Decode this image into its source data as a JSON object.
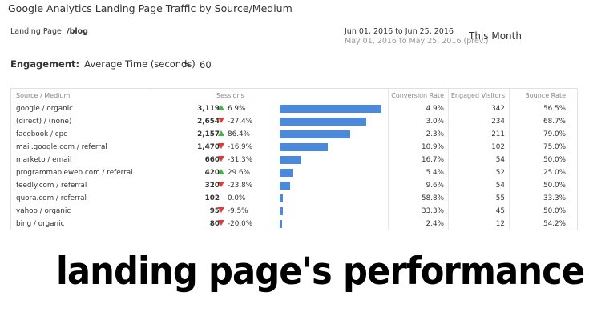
{
  "widget": {
    "title": "Google Analytics Landing Page Traffic by Source/Medium",
    "landing_label": "Landing Page:",
    "landing_value": "/blog",
    "date_current": "Jun 01, 2016  to Jun 25, 2016",
    "date_previous": "May 01, 2016  to May 25, 2016 (prev.)",
    "period": "This Month",
    "filter_label": "Engagement:",
    "filter_metric": "Average Time (seconds)",
    "filter_operator": ">",
    "filter_value": "60"
  },
  "table": {
    "headers": {
      "source": "Source / Medium",
      "sessions": "Sessions",
      "conversion": "Conversion Rate",
      "engaged": "Engaged Visitors",
      "bounce": "Bounce Rate"
    },
    "rows": [
      {
        "source": "google / organic",
        "sessions": "3,119",
        "sessions_value": 3119,
        "change": "6.9%",
        "dir": "up",
        "conversion": "4.9%",
        "engaged": "342",
        "bounce": "56.5%"
      },
      {
        "source": "(direct) / (none)",
        "sessions": "2,654",
        "sessions_value": 2654,
        "change": "-27.4%",
        "dir": "down",
        "conversion": "3.0%",
        "engaged": "234",
        "bounce": "68.7%"
      },
      {
        "source": "facebook / cpc",
        "sessions": "2,157",
        "sessions_value": 2157,
        "change": "86.4%",
        "dir": "up",
        "conversion": "2.3%",
        "engaged": "211",
        "bounce": "79.0%"
      },
      {
        "source": "mail.google.com / referral",
        "sessions": "1,470",
        "sessions_value": 1470,
        "change": "-16.9%",
        "dir": "down",
        "conversion": "10.9%",
        "engaged": "102",
        "bounce": "75.0%"
      },
      {
        "source": "marketo / email",
        "sessions": "660",
        "sessions_value": 660,
        "change": "-31.3%",
        "dir": "down",
        "conversion": "16.7%",
        "engaged": "54",
        "bounce": "50.0%"
      },
      {
        "source": "programmableweb.com / referral",
        "sessions": "420",
        "sessions_value": 420,
        "change": "29.6%",
        "dir": "up",
        "conversion": "5.4%",
        "engaged": "52",
        "bounce": "25.0%"
      },
      {
        "source": "feedly.com / referral",
        "sessions": "320",
        "sessions_value": 320,
        "change": "-23.8%",
        "dir": "down",
        "conversion": "9.6%",
        "engaged": "54",
        "bounce": "50.0%"
      },
      {
        "source": "quora.com / referral",
        "sessions": "102",
        "sessions_value": 102,
        "change": "0.0%",
        "dir": "none",
        "conversion": "58.8%",
        "engaged": "55",
        "bounce": "33.3%"
      },
      {
        "source": "yahoo / organic",
        "sessions": "95",
        "sessions_value": 95,
        "change": "-9.5%",
        "dir": "down",
        "conversion": "33.3%",
        "engaged": "45",
        "bounce": "50.0%"
      },
      {
        "source": "bing / organic",
        "sessions": "80",
        "sessions_value": 80,
        "change": "-20.0%",
        "dir": "down",
        "conversion": "2.4%",
        "engaged": "12",
        "bounce": "54.2%"
      }
    ]
  },
  "colors": {
    "bar": "#4a89dc",
    "up": "#4caf50",
    "down": "#e53935"
  },
  "caption": "landing page's performance"
}
